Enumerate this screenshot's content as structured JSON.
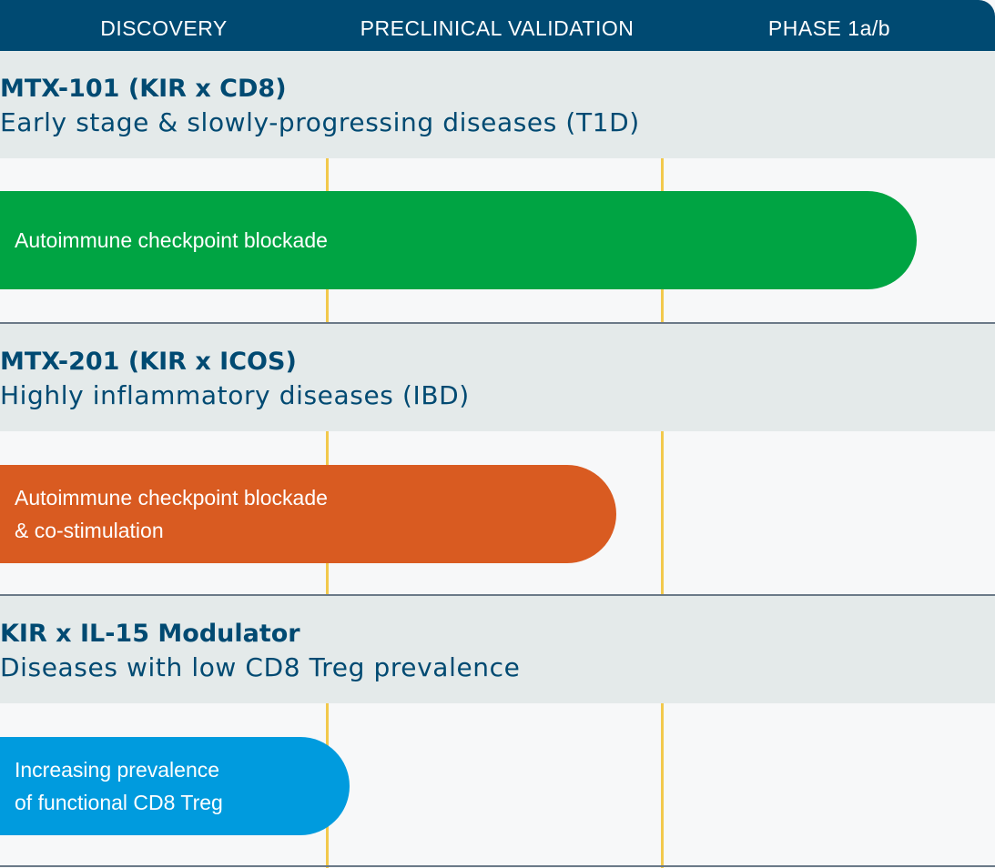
{
  "chart_data": {
    "type": "bar",
    "orientation": "horizontal",
    "stages": [
      "DISCOVERY",
      "PRECLINICAL VALIDATION",
      "PHASE 1a/b"
    ],
    "programs": [
      {
        "name": "MTX-101 (KIR x CD8)",
        "indication": "Early stage & slowly-progressing diseases (T1D)",
        "label_lines": [
          "Autoimmune checkpoint blockade"
        ],
        "progress_stages": 2.75,
        "color": "#00a443"
      },
      {
        "name": "MTX-201 (KIR x ICOS)",
        "indication": "Highly inflammatory diseases (IBD)",
        "label_lines": [
          "Autoimmune checkpoint blockade",
          "& co-stimulation"
        ],
        "progress_stages": 1.85,
        "color": "#d95b21"
      },
      {
        "name": "KIR x IL-15 Modulator",
        "indication": "Diseases with low CD8 Treg prevalence",
        "label_lines": [
          "Increasing prevalence",
          "of functional CD8 Treg"
        ],
        "progress_stages": 1.05,
        "color": "#009bde"
      }
    ]
  },
  "colors": {
    "header": "#004a72",
    "band": "#e4eaea",
    "background": "#f7f8f9",
    "stage_line": "#f2c94c",
    "divider": "#6b7a88",
    "title_text": "#004a72"
  }
}
